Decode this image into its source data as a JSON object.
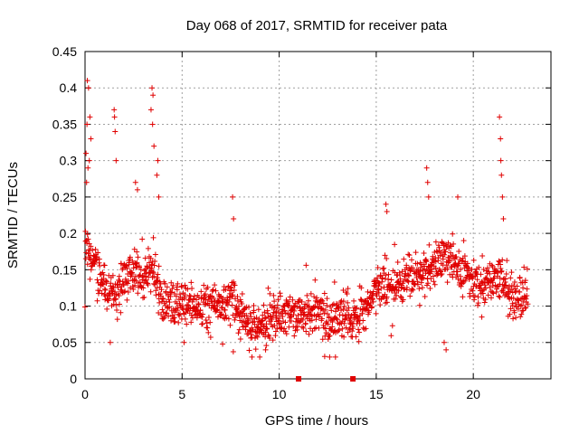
{
  "chart_data": {
    "type": "scatter",
    "title": "Day 068 of 2017, SRMTID for receiver pata",
    "xlabel": "GPS time / hours",
    "ylabel": "SRMTID / TECUs",
    "xlim": [
      0,
      24
    ],
    "ylim": [
      0,
      0.45
    ],
    "xticks": [
      0,
      5,
      10,
      15,
      20
    ],
    "xtick_labels": [
      "0",
      "5",
      "10",
      "15",
      "20"
    ],
    "yticks": [
      0,
      0.05,
      0.1,
      0.15,
      0.2,
      0.25,
      0.3,
      0.35,
      0.4,
      0.45
    ],
    "ytick_labels": [
      "0",
      "0.05",
      "0.1",
      "0.15",
      "0.2",
      "0.25",
      "0.3",
      "0.35",
      "0.4",
      "0.45"
    ],
    "grid": true,
    "marker": "+",
    "color": "#e00000",
    "series": [
      {
        "name": "SRMTID",
        "profile": [
          [
            0.0,
            0.18
          ],
          [
            0.5,
            0.16
          ],
          [
            1.0,
            0.12
          ],
          [
            1.5,
            0.11
          ],
          [
            2.0,
            0.14
          ],
          [
            2.5,
            0.15
          ],
          [
            3.0,
            0.14
          ],
          [
            3.5,
            0.15
          ],
          [
            4.0,
            0.11
          ],
          [
            4.5,
            0.1
          ],
          [
            5.0,
            0.1
          ],
          [
            5.5,
            0.1
          ],
          [
            6.0,
            0.1
          ],
          [
            6.5,
            0.1
          ],
          [
            7.0,
            0.1
          ],
          [
            7.5,
            0.11
          ],
          [
            8.0,
            0.09
          ],
          [
            8.5,
            0.08
          ],
          [
            9.0,
            0.07
          ],
          [
            9.5,
            0.08
          ],
          [
            10.0,
            0.09
          ],
          [
            10.5,
            0.09
          ],
          [
            11.0,
            0.09
          ],
          [
            11.5,
            0.09
          ],
          [
            12.0,
            0.09
          ],
          [
            12.5,
            0.08
          ],
          [
            13.0,
            0.09
          ],
          [
            13.5,
            0.09
          ],
          [
            14.0,
            0.08
          ],
          [
            14.5,
            0.1
          ],
          [
            15.0,
            0.12
          ],
          [
            15.5,
            0.13
          ],
          [
            16.0,
            0.13
          ],
          [
            16.5,
            0.14
          ],
          [
            17.0,
            0.14
          ],
          [
            17.5,
            0.15
          ],
          [
            18.0,
            0.16
          ],
          [
            18.5,
            0.17
          ],
          [
            19.0,
            0.16
          ],
          [
            19.5,
            0.15
          ],
          [
            20.0,
            0.13
          ],
          [
            20.5,
            0.13
          ],
          [
            21.0,
            0.14
          ],
          [
            21.5,
            0.14
          ],
          [
            22.0,
            0.11
          ],
          [
            22.5,
            0.11
          ],
          [
            22.8,
            0.12
          ]
        ],
        "spread": 0.04,
        "hours_start": 0.0,
        "hours_end": 22.8,
        "point_count": 1500,
        "peaks": [
          [
            0.05,
            0.31
          ],
          [
            0.1,
            0.35
          ],
          [
            0.12,
            0.41
          ],
          [
            0.18,
            0.4
          ],
          [
            0.25,
            0.36
          ],
          [
            0.3,
            0.33
          ],
          [
            0.15,
            0.29
          ],
          [
            0.08,
            0.27
          ],
          [
            0.22,
            0.3
          ],
          [
            1.5,
            0.37
          ],
          [
            1.52,
            0.36
          ],
          [
            1.55,
            0.34
          ],
          [
            1.6,
            0.3
          ],
          [
            3.45,
            0.4
          ],
          [
            3.5,
            0.39
          ],
          [
            3.4,
            0.37
          ],
          [
            3.48,
            0.35
          ],
          [
            3.55,
            0.32
          ],
          [
            2.6,
            0.27
          ],
          [
            2.7,
            0.26
          ],
          [
            3.7,
            0.28
          ],
          [
            3.75,
            0.3
          ],
          [
            3.8,
            0.25
          ],
          [
            7.6,
            0.25
          ],
          [
            7.65,
            0.22
          ],
          [
            17.6,
            0.29
          ],
          [
            17.65,
            0.27
          ],
          [
            17.7,
            0.25
          ],
          [
            19.2,
            0.25
          ],
          [
            21.35,
            0.36
          ],
          [
            21.4,
            0.33
          ],
          [
            21.42,
            0.3
          ],
          [
            21.45,
            0.28
          ],
          [
            21.5,
            0.25
          ],
          [
            21.55,
            0.22
          ],
          [
            15.5,
            0.24
          ],
          [
            15.55,
            0.23
          ]
        ],
        "troughs": [
          [
            8.6,
            0.03
          ],
          [
            9.0,
            0.03
          ],
          [
            9.3,
            0.04
          ],
          [
            12.6,
            0.03
          ],
          [
            12.9,
            0.03
          ],
          [
            18.5,
            0.05
          ],
          [
            18.6,
            0.04
          ],
          [
            1.3,
            0.05
          ],
          [
            5.1,
            0.05
          ]
        ]
      }
    ],
    "markers_on_axis": [
      {
        "x": 11.0,
        "y": 0.0
      },
      {
        "x": 13.8,
        "y": 0.0
      }
    ]
  }
}
